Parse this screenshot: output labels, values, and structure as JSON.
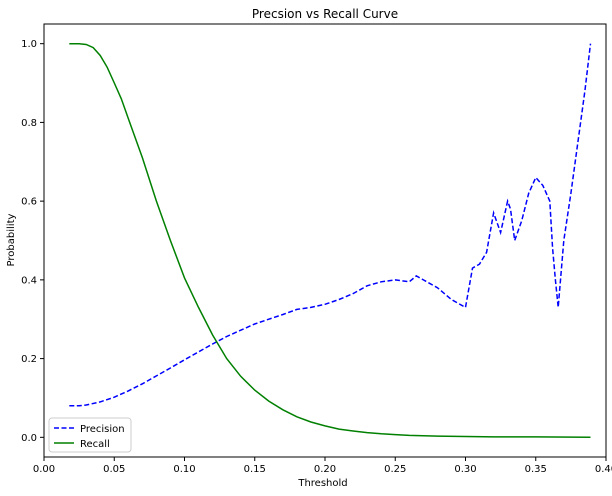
{
  "chart_data": {
    "type": "line",
    "title": "Precsion vs Recall Curve",
    "xlabel": "Threshold",
    "ylabel": "Probability",
    "xlim": [
      0.0,
      0.4
    ],
    "ylim": [
      -0.05,
      1.05
    ],
    "xticks": [
      0.0,
      0.05,
      0.1,
      0.15,
      0.2,
      0.25,
      0.3,
      0.35,
      0.4
    ],
    "xtick_labels": [
      "0.00",
      "0.05",
      "0.10",
      "0.15",
      "0.20",
      "0.25",
      "0.30",
      "0.35",
      "0.40"
    ],
    "yticks": [
      0.0,
      0.2,
      0.4,
      0.6,
      0.8,
      1.0
    ],
    "ytick_labels": [
      "0.0",
      "0.2",
      "0.4",
      "0.6",
      "0.8",
      "1.0"
    ],
    "grid": false,
    "legend_position": "lower-left",
    "series": [
      {
        "name": "Precision",
        "color": "#0000ff",
        "style": "dashed",
        "x": [
          0.018,
          0.025,
          0.03,
          0.04,
          0.05,
          0.06,
          0.07,
          0.08,
          0.09,
          0.1,
          0.11,
          0.12,
          0.13,
          0.14,
          0.15,
          0.16,
          0.17,
          0.18,
          0.19,
          0.2,
          0.21,
          0.22,
          0.23,
          0.24,
          0.25,
          0.26,
          0.265,
          0.27,
          0.28,
          0.29,
          0.295,
          0.3,
          0.305,
          0.31,
          0.315,
          0.32,
          0.325,
          0.33,
          0.332,
          0.335,
          0.34,
          0.345,
          0.35,
          0.355,
          0.36,
          0.362,
          0.364,
          0.366,
          0.37,
          0.375,
          0.38,
          0.385,
          0.389
        ],
        "y": [
          0.08,
          0.08,
          0.082,
          0.09,
          0.102,
          0.118,
          0.136,
          0.156,
          0.176,
          0.197,
          0.217,
          0.237,
          0.256,
          0.272,
          0.288,
          0.3,
          0.312,
          0.325,
          0.33,
          0.338,
          0.35,
          0.365,
          0.385,
          0.395,
          0.4,
          0.395,
          0.41,
          0.4,
          0.38,
          0.35,
          0.34,
          0.33,
          0.43,
          0.44,
          0.47,
          0.57,
          0.52,
          0.6,
          0.58,
          0.5,
          0.55,
          0.62,
          0.66,
          0.64,
          0.6,
          0.48,
          0.4,
          0.33,
          0.5,
          0.62,
          0.75,
          0.88,
          1.0
        ]
      },
      {
        "name": "Recall",
        "color": "#008000",
        "style": "solid",
        "x": [
          0.018,
          0.025,
          0.03,
          0.035,
          0.04,
          0.045,
          0.05,
          0.055,
          0.06,
          0.07,
          0.08,
          0.09,
          0.1,
          0.11,
          0.12,
          0.13,
          0.14,
          0.15,
          0.16,
          0.17,
          0.18,
          0.19,
          0.2,
          0.21,
          0.22,
          0.23,
          0.24,
          0.25,
          0.26,
          0.28,
          0.3,
          0.32,
          0.35,
          0.389
        ],
        "y": [
          1.0,
          1.0,
          0.998,
          0.99,
          0.97,
          0.94,
          0.9,
          0.86,
          0.81,
          0.71,
          0.6,
          0.5,
          0.405,
          0.33,
          0.26,
          0.2,
          0.155,
          0.12,
          0.092,
          0.07,
          0.052,
          0.039,
          0.029,
          0.021,
          0.016,
          0.012,
          0.009,
          0.007,
          0.005,
          0.003,
          0.002,
          0.001,
          0.001,
          0.0
        ]
      }
    ]
  }
}
